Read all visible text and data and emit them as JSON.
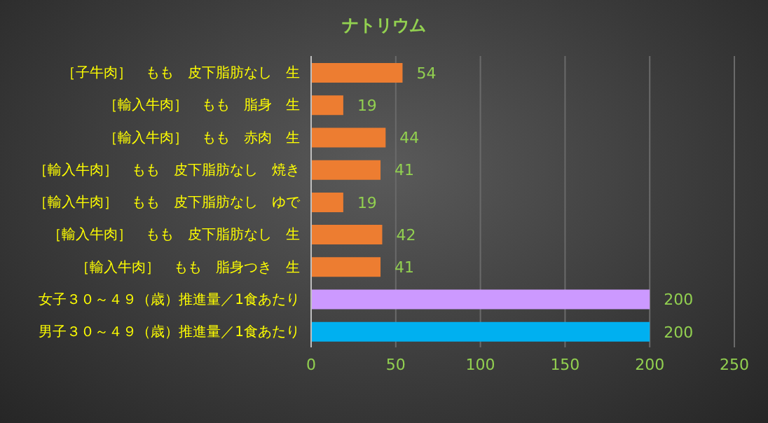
{
  "chart_data": {
    "type": "bar",
    "orientation": "horizontal",
    "title": "ナトリウム",
    "categories": [
      "［子牛肉］　もも　皮下脂肪なし　生",
      "［輸入牛肉］　もも　脂身　生",
      "［輸入牛肉］　もも　赤肉　生",
      "［輸入牛肉］　もも　皮下脂肪なし　焼き",
      "［輸入牛肉］　もも　皮下脂肪なし　ゆで",
      "［輸入牛肉］　もも　皮下脂肪なし　生",
      "［輸入牛肉］　もも　脂身つき　生",
      "女子３０～４９（歳）推進量／1食あたり",
      "男子３０～４９（歳）推進量／1食あたり"
    ],
    "values": [
      54,
      19,
      44,
      41,
      19,
      42,
      41,
      200,
      200
    ],
    "colors": [
      "#ed7d31",
      "#ed7d31",
      "#ed7d31",
      "#ed7d31",
      "#ed7d31",
      "#ed7d31",
      "#ed7d31",
      "#cc99ff",
      "#00b0f0"
    ],
    "xlim": [
      0,
      250
    ],
    "xticks": [
      0,
      50,
      100,
      150,
      200,
      250
    ],
    "grid": "x",
    "data_labels": true
  }
}
